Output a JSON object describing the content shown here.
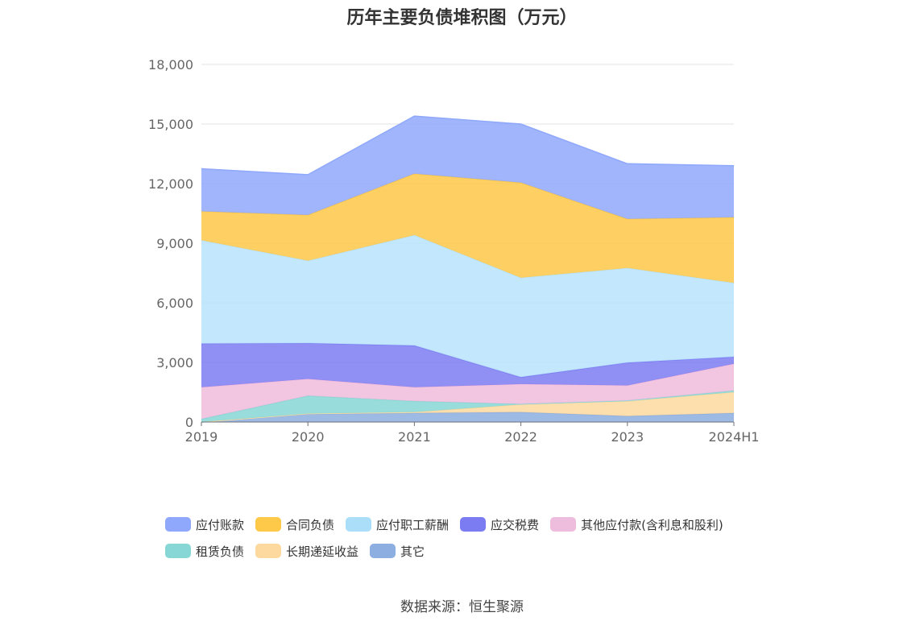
{
  "chart_data": {
    "type": "area",
    "title": "历年主要负债堆积图（万元）",
    "categories": [
      "2019",
      "2020",
      "2021",
      "2022",
      "2023",
      "2024H1"
    ],
    "ylim": [
      0,
      18000
    ],
    "yticks": [
      "0",
      "3,000",
      "6,000",
      "9,000",
      "12,000",
      "15,000",
      "18,000"
    ],
    "stacked": true,
    "grid": true,
    "legend_position": "bottom",
    "series": [
      {
        "name": "其它",
        "color": "#8caee0",
        "values": [
          0,
          400,
          450,
          500,
          300,
          450
        ]
      },
      {
        "name": "长期递延收益",
        "color": "#fdd9a0",
        "values": [
          0,
          20,
          50,
          380,
          750,
          1050
        ]
      },
      {
        "name": "租赁负债",
        "color": "#86d7d6",
        "values": [
          150,
          900,
          550,
          30,
          30,
          80
        ]
      },
      {
        "name": "其他应付款(含利息和股利)",
        "color": "#f0bcdc",
        "values": [
          1600,
          850,
          700,
          1000,
          760,
          1350
        ]
      },
      {
        "name": "应交税费",
        "color": "#7c7cf2",
        "values": [
          2200,
          1800,
          2100,
          350,
          1150,
          350
        ]
      },
      {
        "name": "应付职工薪酬",
        "color": "#b8e3fb",
        "values": [
          5200,
          4150,
          5560,
          5000,
          4760,
          3720
        ]
      },
      {
        "name": "合同负债",
        "color": "#fec848",
        "values": [
          1450,
          2300,
          3090,
          4790,
          2470,
          3300
        ]
      },
      {
        "name": "应付账款",
        "color": "#8fa8fb",
        "values": [
          2150,
          2030,
          2900,
          2950,
          2780,
          2600
        ]
      }
    ]
  },
  "legend": {
    "rows": [
      [
        {
          "label": "应付账款",
          "color": "#8fa8fb"
        },
        {
          "label": "合同负债",
          "color": "#fec848"
        },
        {
          "label": "应付职工薪酬",
          "color": "#abdff9"
        },
        {
          "label": "应交税费",
          "color": "#7c7cf2"
        },
        {
          "label": "其他应付款(含利息和股利)",
          "color": "#eebcdc"
        }
      ],
      [
        {
          "label": "租赁负债",
          "color": "#86d7d6"
        },
        {
          "label": "长期递延收益",
          "color": "#fdd9a0"
        },
        {
          "label": "其它",
          "color": "#8caee0"
        }
      ]
    ]
  },
  "source": "数据来源：恒生聚源"
}
